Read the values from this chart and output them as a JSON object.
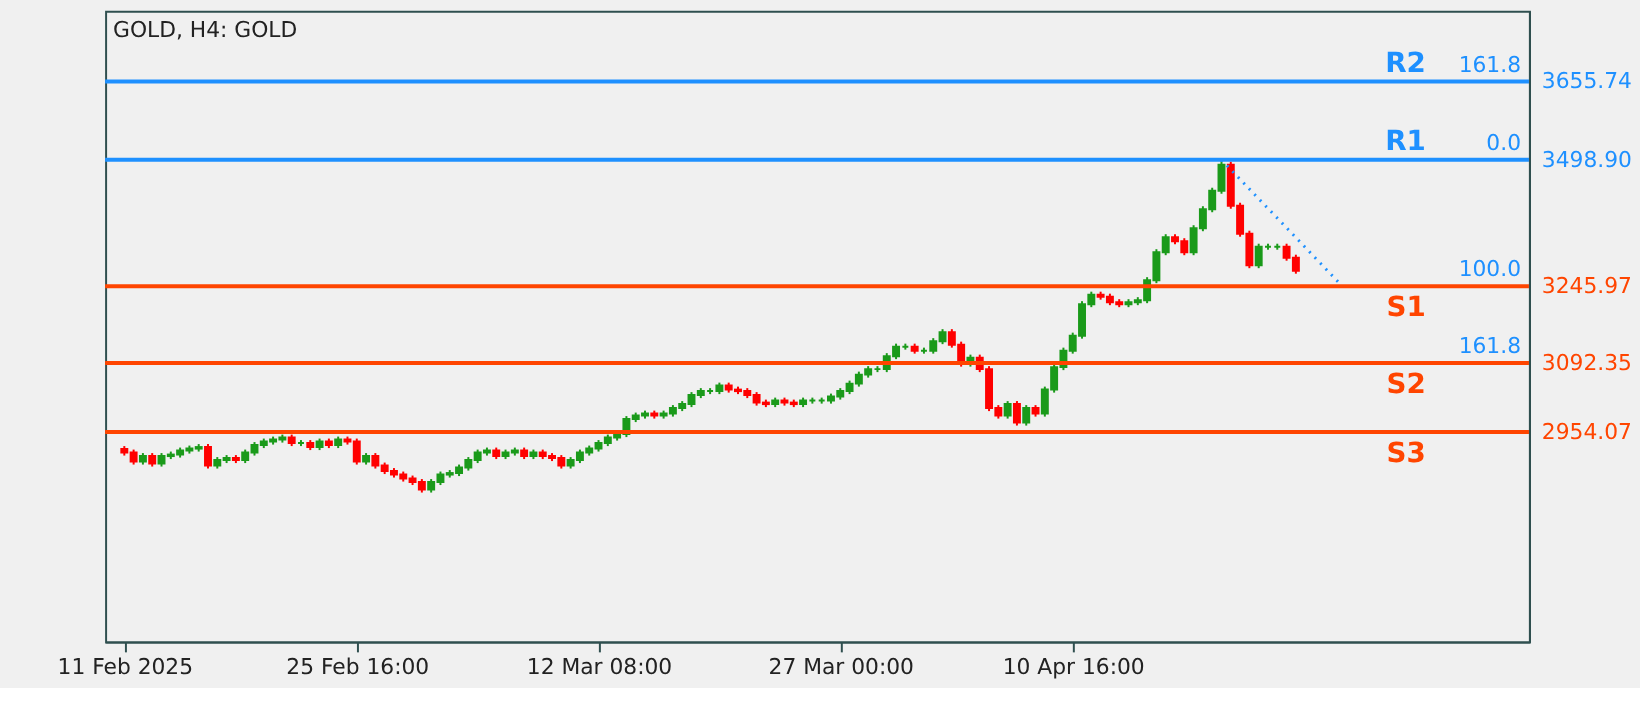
{
  "chart_data": {
    "type": "candlestick",
    "title": "GOLD, H4:  GOLD",
    "categories": [
      "11 Feb 2025",
      null,
      null,
      null,
      null,
      null,
      null,
      null,
      null,
      null,
      null,
      null,
      null,
      null,
      null,
      null,
      null,
      null,
      null,
      null,
      null,
      null,
      null,
      null,
      null,
      "25 Feb 16:00",
      null,
      null,
      null,
      null,
      null,
      null,
      null,
      null,
      null,
      null,
      null,
      null,
      null,
      null,
      null,
      null,
      null,
      null,
      null,
      null,
      null,
      null,
      null,
      null,
      null,
      "12 Mar 08:00",
      null,
      null,
      null,
      null,
      null,
      null,
      null,
      null,
      null,
      null,
      null,
      null,
      null,
      null,
      null,
      null,
      null,
      null,
      null,
      null,
      null,
      null,
      null,
      null,
      null,
      "27 Mar 00:00",
      null,
      null,
      null,
      null,
      null,
      null,
      null,
      null,
      null,
      null,
      null,
      null,
      null,
      null,
      null,
      null,
      null,
      null,
      null,
      null,
      null,
      null,
      null,
      null,
      "10 Apr 16:00",
      null,
      null,
      null,
      null,
      null,
      null,
      null,
      null,
      null,
      null,
      null,
      null,
      null,
      null,
      null,
      null,
      null,
      null,
      null,
      null,
      null,
      null,
      null,
      null,
      null,
      null,
      null,
      null,
      null,
      null,
      null,
      null,
      null,
      null,
      null,
      null,
      null,
      null,
      null,
      null,
      null,
      null,
      null,
      null,
      null,
      null,
      null
    ],
    "ohlc": [
      [
        2920,
        2926,
        2907,
        2913
      ],
      [
        2913,
        2919,
        2889,
        2895
      ],
      [
        2895,
        2912,
        2889,
        2906
      ],
      [
        2906,
        2912,
        2885,
        2891
      ],
      [
        2891,
        2912,
        2885,
        2906
      ],
      [
        2906,
        2915,
        2900,
        2909
      ],
      [
        2909,
        2923,
        2903,
        2917
      ],
      [
        2917,
        2927,
        2911,
        2921
      ],
      [
        2921,
        2930,
        2915,
        2924
      ],
      [
        2924,
        2930,
        2881,
        2887
      ],
      [
        2887,
        2904,
        2881,
        2898
      ],
      [
        2898,
        2908,
        2892,
        2902
      ],
      [
        2902,
        2908,
        2892,
        2898
      ],
      [
        2898,
        2919,
        2892,
        2913
      ],
      [
        2913,
        2934,
        2907,
        2928
      ],
      [
        2928,
        2941,
        2922,
        2935
      ],
      [
        2935,
        2945,
        2929,
        2939
      ],
      [
        2939,
        2949,
        2933,
        2943
      ],
      [
        2943,
        2949,
        2926,
        2932
      ],
      [
        2932,
        2938,
        2926,
        2932
      ],
      [
        2932,
        2938,
        2918,
        2924
      ],
      [
        2924,
        2941,
        2918,
        2935
      ],
      [
        2935,
        2941,
        2922,
        2928
      ],
      [
        2928,
        2945,
        2922,
        2939
      ],
      [
        2939,
        2945,
        2929,
        2935
      ],
      [
        2935,
        2941,
        2889,
        2895
      ],
      [
        2895,
        2912,
        2889,
        2906
      ],
      [
        2906,
        2912,
        2881,
        2887
      ],
      [
        2887,
        2893,
        2870,
        2876
      ],
      [
        2876,
        2882,
        2863,
        2869
      ],
      [
        2869,
        2875,
        2855,
        2861
      ],
      [
        2861,
        2867,
        2848,
        2854
      ],
      [
        2854,
        2860,
        2833,
        2839
      ],
      [
        2839,
        2860,
        2833,
        2854
      ],
      [
        2854,
        2875,
        2848,
        2869
      ],
      [
        2869,
        2878,
        2863,
        2872
      ],
      [
        2872,
        2889,
        2866,
        2883
      ],
      [
        2883,
        2904,
        2877,
        2898
      ],
      [
        2898,
        2919,
        2892,
        2913
      ],
      [
        2913,
        2923,
        2907,
        2917
      ],
      [
        2917,
        2923,
        2900,
        2906
      ],
      [
        2906,
        2919,
        2900,
        2913
      ],
      [
        2913,
        2923,
        2907,
        2917
      ],
      [
        2917,
        2923,
        2900,
        2906
      ],
      [
        2906,
        2919,
        2900,
        2913
      ],
      [
        2913,
        2919,
        2900,
        2906
      ],
      [
        2906,
        2912,
        2896,
        2902
      ],
      [
        2902,
        2908,
        2881,
        2887
      ],
      [
        2887,
        2904,
        2881,
        2898
      ],
      [
        2898,
        2919,
        2892,
        2913
      ],
      [
        2913,
        2927,
        2907,
        2921
      ],
      [
        2921,
        2938,
        2915,
        2932
      ],
      [
        2932,
        2949,
        2926,
        2943
      ],
      [
        2943,
        2956,
        2937,
        2950
      ],
      [
        2950,
        2986,
        2944,
        2980
      ],
      [
        2980,
        2993,
        2974,
        2987
      ],
      [
        2987,
        2997,
        2981,
        2991
      ],
      [
        2991,
        2997,
        2981,
        2987
      ],
      [
        2987,
        2997,
        2981,
        2991
      ],
      [
        2991,
        3008,
        2985,
        3002
      ],
      [
        3002,
        3016,
        2996,
        3010
      ],
      [
        3010,
        3034,
        3004,
        3028
      ],
      [
        3028,
        3042,
        3022,
        3036
      ],
      [
        3036,
        3042,
        3030,
        3036
      ],
      [
        3036,
        3053,
        3030,
        3047
      ],
      [
        3047,
        3053,
        3033,
        3039
      ],
      [
        3039,
        3045,
        3030,
        3036
      ],
      [
        3036,
        3042,
        3022,
        3028
      ],
      [
        3028,
        3034,
        3007,
        3013
      ],
      [
        3013,
        3019,
        3004,
        3010
      ],
      [
        3010,
        3023,
        3004,
        3017
      ],
      [
        3017,
        3023,
        3007,
        3013
      ],
      [
        3013,
        3019,
        3004,
        3010
      ],
      [
        3010,
        3023,
        3004,
        3017
      ],
      [
        3017,
        3023,
        3011,
        3017
      ],
      [
        3017,
        3023,
        3011,
        3017
      ],
      [
        3017,
        3031,
        3011,
        3025
      ],
      [
        3025,
        3042,
        3019,
        3036
      ],
      [
        3036,
        3057,
        3030,
        3051
      ],
      [
        3051,
        3075,
        3045,
        3069
      ],
      [
        3069,
        3086,
        3063,
        3080
      ],
      [
        3080,
        3086,
        3074,
        3080
      ],
      [
        3080,
        3112,
        3074,
        3106
      ],
      [
        3106,
        3131,
        3100,
        3125
      ],
      [
        3125,
        3131,
        3119,
        3125
      ],
      [
        3125,
        3131,
        3111,
        3117
      ],
      [
        3117,
        3123,
        3111,
        3117
      ],
      [
        3117,
        3142,
        3111,
        3136
      ],
      [
        3136,
        3160,
        3130,
        3154
      ],
      [
        3154,
        3160,
        3123,
        3129
      ],
      [
        3129,
        3135,
        3085,
        3091
      ],
      [
        3091,
        3109,
        3085,
        3103
      ],
      [
        3103,
        3109,
        3074,
        3080
      ],
      [
        3080,
        3086,
        2996,
        3002
      ],
      [
        3002,
        3008,
        2981,
        2987
      ],
      [
        2987,
        3016,
        2981,
        3010
      ],
      [
        3010,
        3016,
        2967,
        2973
      ],
      [
        2973,
        3008,
        2967,
        3002
      ],
      [
        3002,
        3008,
        2985,
        2991
      ],
      [
        2991,
        3045,
        2985,
        3039
      ],
      [
        3039,
        3090,
        3033,
        3084
      ],
      [
        3084,
        3123,
        3078,
        3117
      ],
      [
        3117,
        3153,
        3111,
        3147
      ],
      [
        3147,
        3216,
        3141,
        3210
      ],
      [
        3210,
        3235,
        3204,
        3229
      ],
      [
        3229,
        3235,
        3219,
        3225
      ],
      [
        3225,
        3231,
        3208,
        3214
      ],
      [
        3214,
        3220,
        3204,
        3210
      ],
      [
        3210,
        3220,
        3204,
        3214
      ],
      [
        3214,
        3224,
        3208,
        3218
      ],
      [
        3218,
        3264,
        3212,
        3258
      ],
      [
        3258,
        3320,
        3252,
        3314
      ],
      [
        3314,
        3350,
        3308,
        3344
      ],
      [
        3344,
        3350,
        3330,
        3336
      ],
      [
        3336,
        3342,
        3308,
        3314
      ],
      [
        3314,
        3368,
        3308,
        3362
      ],
      [
        3362,
        3406,
        3356,
        3400
      ],
      [
        3400,
        3443,
        3394,
        3437
      ],
      [
        3437,
        3498.9,
        3431,
        3489
      ],
      [
        3489,
        3495,
        3401,
        3407
      ],
      [
        3407,
        3413,
        3345,
        3351
      ],
      [
        3351,
        3357,
        3282,
        3288
      ],
      [
        3288,
        3331,
        3282,
        3325
      ],
      [
        3325,
        3331,
        3319,
        3325
      ],
      [
        3325,
        3331,
        3319,
        3325
      ],
      [
        3325,
        3331,
        3297,
        3303
      ],
      [
        3303,
        3309,
        3271,
        3277
      ],
      null,
      null,
      null,
      null,
      null,
      null,
      null,
      null,
      null,
      null,
      null,
      null,
      null,
      null,
      null,
      null,
      null,
      null,
      null,
      null,
      null,
      null,
      null
    ],
    "series": [
      {
        "type": "line",
        "color": "#1e90ff",
        "line_style": "dotted",
        "values": [
          null,
          null,
          null,
          null,
          null,
          null,
          null,
          null,
          null,
          null,
          null,
          null,
          null,
          null,
          null,
          null,
          null,
          null,
          null,
          null,
          null,
          null,
          null,
          null,
          null,
          null,
          null,
          null,
          null,
          null,
          null,
          null,
          null,
          null,
          null,
          null,
          null,
          null,
          null,
          null,
          null,
          null,
          null,
          null,
          null,
          null,
          null,
          null,
          null,
          null,
          null,
          null,
          null,
          null,
          null,
          null,
          null,
          null,
          null,
          null,
          null,
          null,
          null,
          null,
          null,
          null,
          null,
          null,
          null,
          null,
          null,
          null,
          null,
          null,
          null,
          null,
          null,
          null,
          null,
          null,
          null,
          null,
          null,
          null,
          null,
          null,
          null,
          null,
          null,
          null,
          null,
          null,
          null,
          null,
          null,
          null,
          null,
          null,
          null,
          null,
          null,
          null,
          null,
          null,
          null,
          null,
          null,
          null,
          null,
          null,
          null,
          null,
          null,
          null,
          null,
          null,
          null,
          null,
          3498.9,
          null,
          null,
          null,
          null,
          null,
          null,
          null,
          null,
          null,
          null,
          null,
          null,
          3245.97,
          null,
          null,
          null,
          null,
          null,
          null,
          null,
          null,
          null,
          null,
          null,
          null,
          null,
          null,
          null,
          null,
          null,
          null
        ]
      }
    ],
    "ylim": [
      2535,
      3797
    ],
    "yticks": [
      {
        "value": 3655.74,
        "label": "3655.74"
      },
      {
        "value": 3498.9,
        "label": "3498.90"
      },
      {
        "value": 3245.97,
        "label": "3245.97"
      },
      {
        "value": 3092.35,
        "label": "3092.35"
      },
      {
        "value": 2954.07,
        "label": "2954.07"
      }
    ],
    "ref_lines": [
      {
        "axis": "y",
        "value": 3655.74,
        "label": "R2",
        "color": "#1e90ff"
      },
      {
        "axis": "y",
        "value": 3498.9,
        "label": "R1",
        "color": "#1e90ff"
      },
      {
        "axis": "y",
        "value": 3245.97,
        "label": "S1",
        "color": "#ff4500"
      },
      {
        "axis": "y",
        "value": 3092.35,
        "label": "S2",
        "color": "#ff4500"
      },
      {
        "axis": "y",
        "value": 2954.07,
        "label": "S3",
        "color": "#ff4500"
      }
    ],
    "annotations": [
      {
        "text": "161.8",
        "y": 3655.74
      },
      {
        "text": "0.0",
        "y": 3498.9
      },
      {
        "text": "100.0",
        "y": 3245.97
      },
      {
        "text": "161.8",
        "y": 3092.35
      }
    ]
  }
}
